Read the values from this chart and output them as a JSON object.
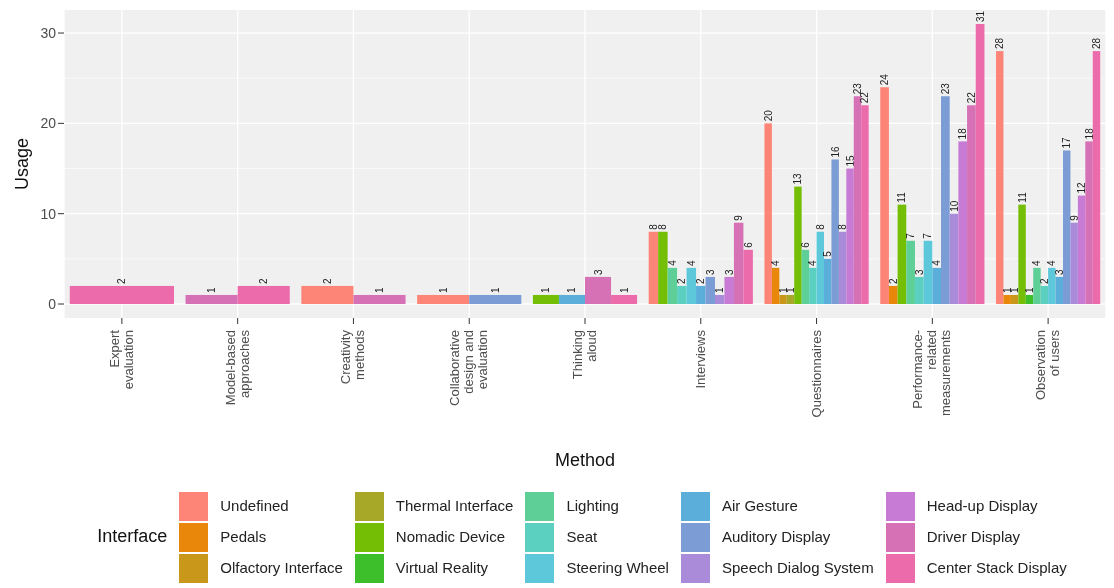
{
  "chart_data": {
    "type": "bar",
    "xlabel": "Method",
    "ylabel": "Usage",
    "legend_title": "Interface",
    "legend": "bottom",
    "grid": true,
    "data_labels": true,
    "categories": [
      "Expert\nevaluation",
      "Model-based\napproaches",
      "Creativity\nmethods",
      "Collaborative\ndesign and\nevaluation",
      "Thinking\naloud",
      "Interviews",
      "Questionnaires",
      "Performance-\nrelated\nmeasurements",
      "Observation\nof users"
    ],
    "ylim": [
      -1.55,
      32.55
    ],
    "yticks": [
      0,
      10,
      20,
      30
    ],
    "series": [
      {
        "name": "Undefined",
        "color": "#fd8578",
        "values": [
          null,
          null,
          2,
          1,
          null,
          8,
          20,
          24,
          28
        ]
      },
      {
        "name": "Pedals",
        "color": "#e8870a",
        "values": [
          null,
          null,
          null,
          null,
          null,
          null,
          4,
          2,
          1
        ]
      },
      {
        "name": "Olfactory Interface",
        "color": "#c9981a",
        "values": [
          null,
          null,
          null,
          null,
          null,
          null,
          1,
          null,
          1
        ]
      },
      {
        "name": "Thermal Interface",
        "color": "#a8a828",
        "values": [
          null,
          null,
          null,
          null,
          null,
          null,
          1,
          null,
          null
        ]
      },
      {
        "name": "Nomadic Device",
        "color": "#74bf06",
        "values": [
          null,
          null,
          null,
          null,
          1,
          8,
          13,
          11,
          11
        ]
      },
      {
        "name": "Virtual Reality",
        "color": "#3dbe2b",
        "values": [
          null,
          null,
          null,
          null,
          null,
          null,
          null,
          null,
          1
        ]
      },
      {
        "name": "Lighting",
        "color": "#5ecf96",
        "values": [
          null,
          null,
          null,
          null,
          null,
          4,
          6,
          7,
          4
        ]
      },
      {
        "name": "Seat",
        "color": "#5bd0c0",
        "values": [
          null,
          null,
          null,
          null,
          null,
          2,
          4,
          3,
          2
        ]
      },
      {
        "name": "Steering Wheel",
        "color": "#5cc8da",
        "values": [
          null,
          null,
          null,
          null,
          null,
          4,
          8,
          7,
          4
        ]
      },
      {
        "name": "Air Gesture",
        "color": "#5baed9",
        "values": [
          null,
          null,
          null,
          null,
          1,
          2,
          5,
          4,
          3
        ]
      },
      {
        "name": "Auditory Display",
        "color": "#7b9cd4",
        "values": [
          null,
          null,
          null,
          1,
          null,
          3,
          16,
          23,
          17
        ]
      },
      {
        "name": "Speech Dialog System",
        "color": "#a98bd9",
        "values": [
          null,
          null,
          null,
          null,
          null,
          1,
          8,
          10,
          9
        ]
      },
      {
        "name": "Head-up Display",
        "color": "#c77bd4",
        "values": [
          null,
          null,
          null,
          null,
          null,
          3,
          15,
          18,
          12
        ]
      },
      {
        "name": "Driver Display",
        "color": "#d671b6",
        "values": [
          null,
          1,
          1,
          null,
          3,
          9,
          23,
          22,
          18
        ]
      },
      {
        "name": "Center Stack Display",
        "color": "#ec6bab",
        "values": [
          2,
          2,
          null,
          null,
          1,
          6,
          22,
          31,
          28
        ]
      }
    ]
  }
}
